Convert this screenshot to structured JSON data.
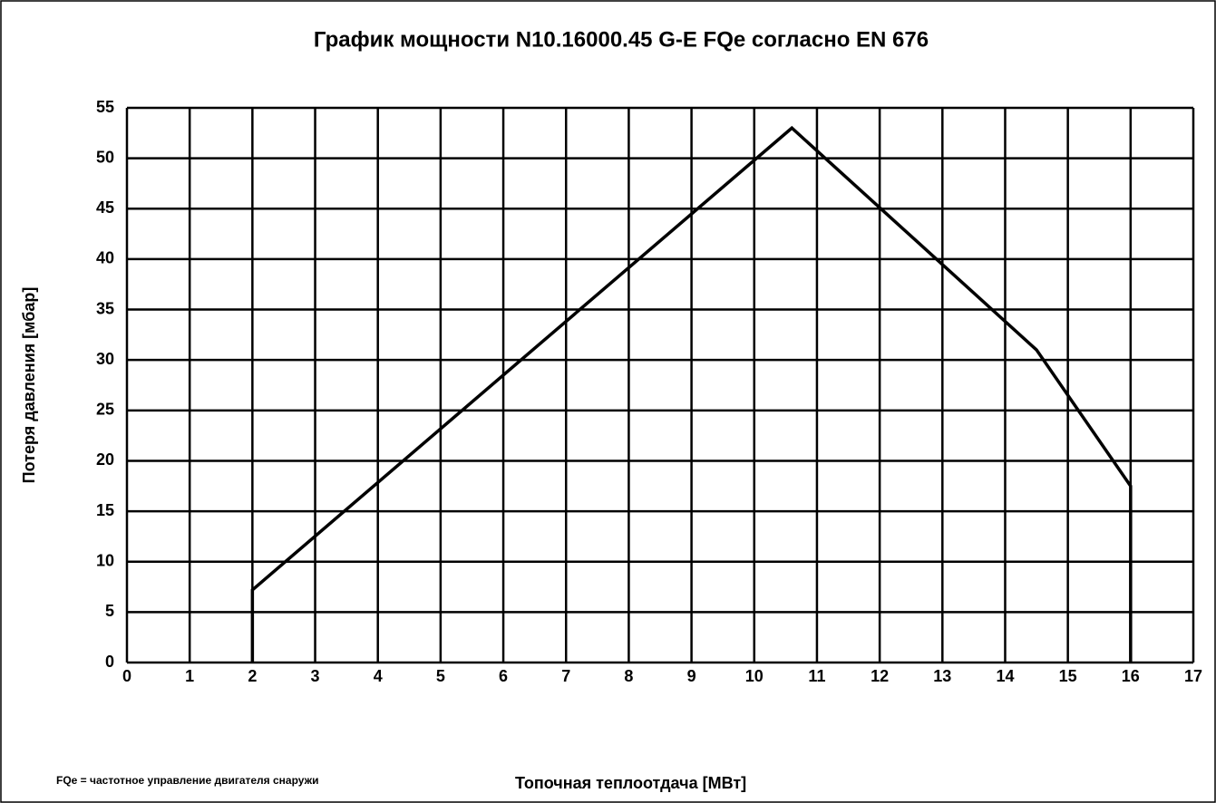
{
  "chart_data": {
    "type": "line",
    "title": "График мощности N10.16000.45 G-E FQe согласно EN 676",
    "x_label": "Топочная теплоотдача [МВт]",
    "y_label": "Потеря давления [мбар]",
    "annotation": "FQe = частотное управление двигателя снаружи",
    "x": [
      2,
      2,
      10.6,
      14.5,
      16,
      16
    ],
    "values": [
      0,
      7.2,
      53,
      31,
      17.5,
      0
    ],
    "color": "#000000",
    "xlim": [
      0,
      17
    ],
    "xticks": [
      0,
      1,
      2,
      3,
      4,
      5,
      6,
      7,
      8,
      9,
      10,
      11,
      12,
      13,
      14,
      15,
      16,
      17
    ],
    "ylim": [
      0,
      55
    ],
    "yticks": [
      0,
      5,
      10,
      15,
      20,
      25,
      30,
      35,
      40,
      45,
      50,
      55
    ],
    "grid": true
  }
}
